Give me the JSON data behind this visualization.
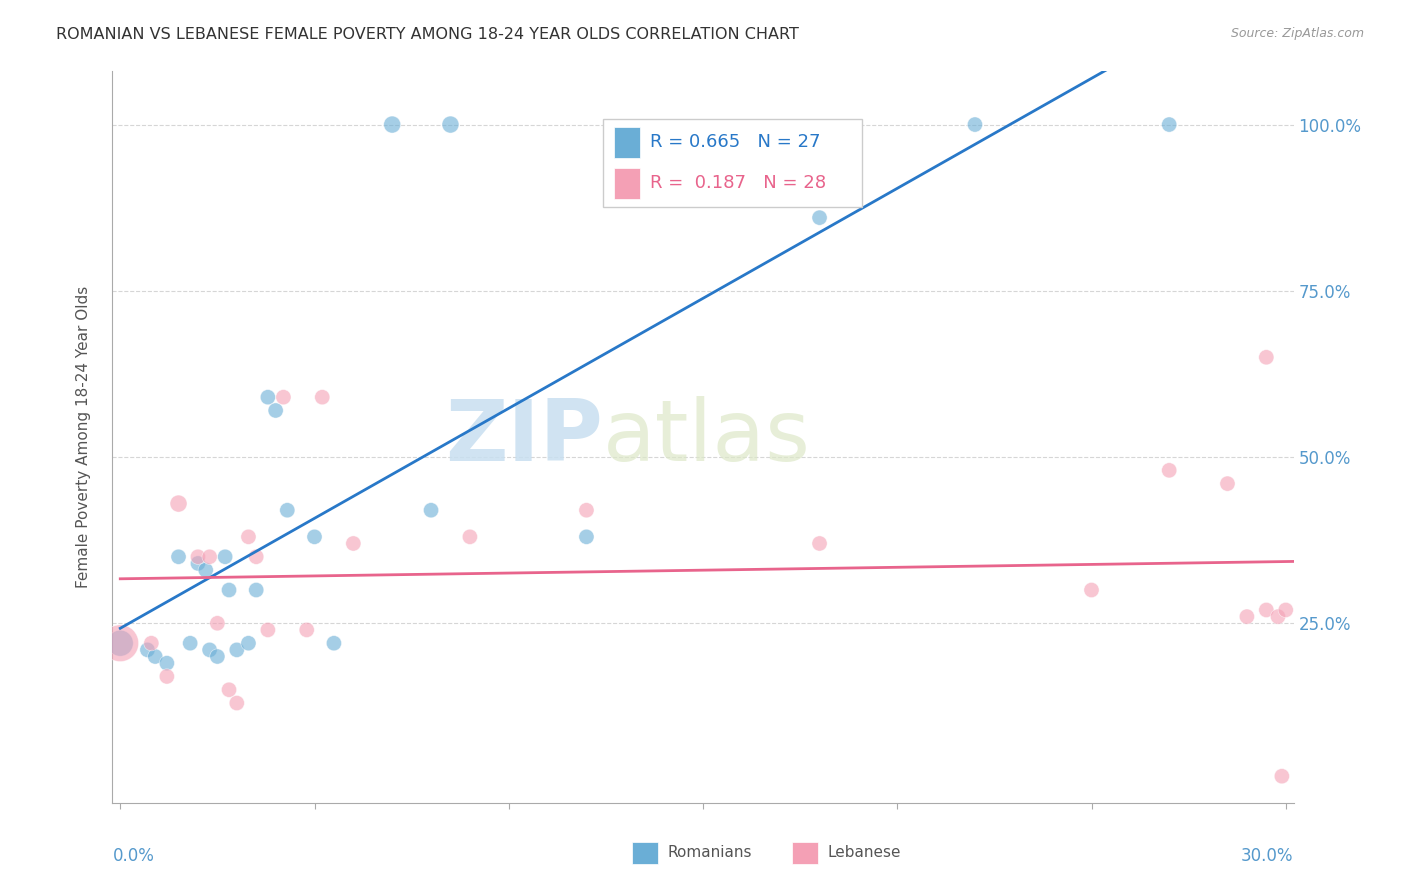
{
  "title": "ROMANIAN VS LEBANESE FEMALE POVERTY AMONG 18-24 YEAR OLDS CORRELATION CHART",
  "source": "Source: ZipAtlas.com",
  "ylabel": "Female Poverty Among 18-24 Year Olds",
  "romanian_R": 0.665,
  "romanian_N": 27,
  "lebanese_R": 0.187,
  "lebanese_N": 28,
  "romanian_color": "#6aaed6",
  "lebanese_color": "#f4a0b5",
  "romanian_line_color": "#2878c8",
  "lebanese_line_color": "#e8648c",
  "watermark_zip": "ZIP",
  "watermark_atlas": "atlas",
  "romanian_x": [
    0.0,
    0.007,
    0.009,
    0.012,
    0.015,
    0.018,
    0.02,
    0.022,
    0.023,
    0.025,
    0.027,
    0.028,
    0.03,
    0.033,
    0.035,
    0.038,
    0.04,
    0.043,
    0.05,
    0.055,
    0.07,
    0.08,
    0.085,
    0.12,
    0.18,
    0.22,
    0.27
  ],
  "romanian_y": [
    0.22,
    0.21,
    0.2,
    0.19,
    0.35,
    0.22,
    0.34,
    0.33,
    0.21,
    0.2,
    0.35,
    0.3,
    0.21,
    0.22,
    0.3,
    0.59,
    0.57,
    0.42,
    0.38,
    0.22,
    1.0,
    0.42,
    1.0,
    0.38,
    0.86,
    1.0,
    1.0
  ],
  "lebanese_x": [
    0.0,
    0.008,
    0.012,
    0.015,
    0.02,
    0.023,
    0.025,
    0.028,
    0.03,
    0.033,
    0.035,
    0.038,
    0.042,
    0.048,
    0.052,
    0.06,
    0.09,
    0.12,
    0.18,
    0.25,
    0.27,
    0.285,
    0.29,
    0.295,
    0.295,
    0.298,
    0.299,
    0.3
  ],
  "lebanese_y": [
    0.22,
    0.22,
    0.17,
    0.43,
    0.35,
    0.35,
    0.25,
    0.15,
    0.13,
    0.38,
    0.35,
    0.24,
    0.59,
    0.24,
    0.59,
    0.37,
    0.38,
    0.42,
    0.37,
    0.3,
    0.48,
    0.46,
    0.26,
    0.27,
    0.65,
    0.26,
    0.02,
    0.27
  ],
  "romanian_sizes": [
    350,
    120,
    120,
    120,
    120,
    120,
    120,
    120,
    120,
    120,
    120,
    120,
    120,
    120,
    120,
    120,
    120,
    120,
    120,
    120,
    150,
    120,
    150,
    120,
    120,
    120,
    120
  ],
  "lebanese_sizes": [
    700,
    120,
    120,
    150,
    120,
    120,
    120,
    120,
    120,
    120,
    120,
    120,
    120,
    120,
    120,
    120,
    120,
    120,
    120,
    120,
    120,
    120,
    120,
    120,
    120,
    120,
    120,
    120
  ],
  "xlim": [
    -0.002,
    0.302
  ],
  "ylim": [
    -0.02,
    1.08
  ],
  "yticks": [
    0.25,
    0.5,
    0.75,
    1.0
  ],
  "ytick_labels": [
    "25.0%",
    "50.0%",
    "75.0%",
    "100.0%"
  ],
  "xtick_positions": [
    0.0,
    0.05,
    0.1,
    0.15,
    0.2,
    0.25,
    0.3
  ]
}
